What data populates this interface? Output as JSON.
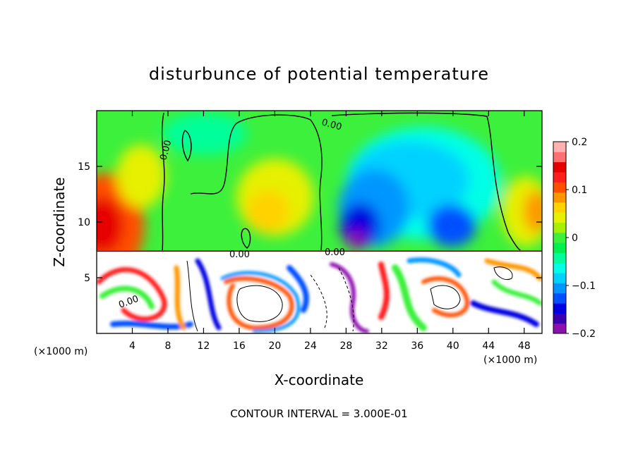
{
  "chart_data": {
    "type": "heatmap",
    "title": "disturbunce of potential temperature",
    "xlabel": "X-coordinate",
    "ylabel": "Z-coordinate",
    "x_unit": "(×1000 m)",
    "x_unit_right": "(×1000 m)",
    "xlim": [
      0,
      50
    ],
    "ylim": [
      0,
      20
    ],
    "x_ticks": [
      4,
      8,
      12,
      16,
      20,
      24,
      28,
      32,
      36,
      40,
      44,
      48
    ],
    "x_tick_labels": [
      "4",
      "8",
      "12",
      "16",
      "20",
      "24",
      "28",
      "32",
      "36",
      "40",
      "44",
      "48"
    ],
    "y_ticks": [
      5,
      10,
      15
    ],
    "y_tick_labels": [
      "5",
      "10",
      "15"
    ],
    "colorbar": {
      "min": -0.2,
      "max": 0.2,
      "tick_values": [
        0.2,
        0.1,
        0,
        -0.1,
        -0.2
      ],
      "tick_labels": [
        "0.2",
        "0.1",
        "0",
        "−0.1",
        "−0.2"
      ],
      "colors": [
        "#8e0fb0",
        "#3a00b0",
        "#0000e0",
        "#0050ff",
        "#0096ff",
        "#00d2ff",
        "#00ffe6",
        "#00ff9a",
        "#00f050",
        "#3cf03c",
        "#a8f000",
        "#e6f000",
        "#ffd200",
        "#ff9600",
        "#ff5000",
        "#ff1e1e",
        "#e60000",
        "#ff7070",
        "#ffb0b0"
      ]
    },
    "contour_labels": [
      "0.00",
      "0.00",
      "0.00",
      "0.00",
      "0.00"
    ],
    "interface_height": 7.2,
    "footer": "CONTOUR INTERVAL = 3.000E-01"
  }
}
